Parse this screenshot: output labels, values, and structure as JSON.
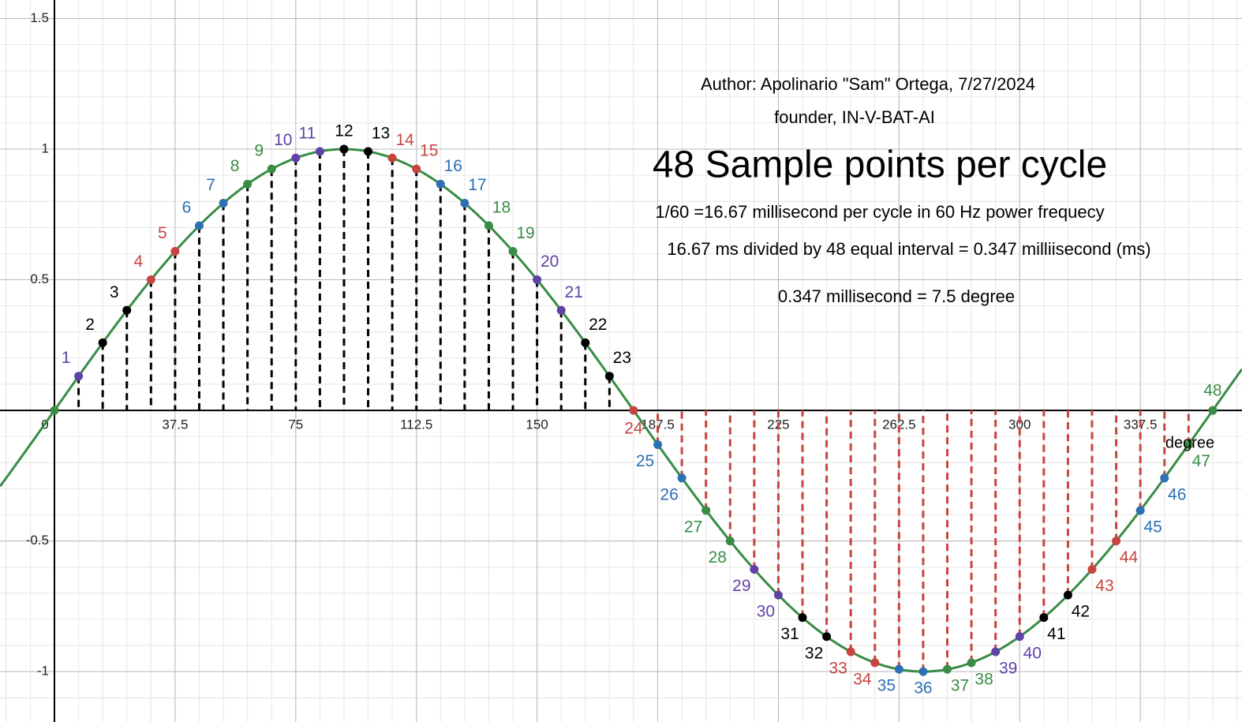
{
  "chart_data": {
    "type": "stem",
    "title": "48 Sample points per cycle",
    "annotations": [
      "Author: Apolinario \"Sam\" Ortega, 7/27/2024",
      "founder, IN-V-BAT-AI",
      "1/60 =16.67 millisecond per cycle in 60 Hz power frequecy",
      "16.67 ms divided by 48 equal interval = 0.347 milliisecond (ms)",
      "0.347 millisecond = 7.5 degree"
    ],
    "x_label": "degree",
    "x": [
      0,
      7.5,
      15,
      22.5,
      30,
      37.5,
      45,
      52.5,
      60,
      67.5,
      75,
      82.5,
      90,
      97.5,
      105,
      112.5,
      120,
      127.5,
      135,
      142.5,
      150,
      157.5,
      165,
      172.5,
      180,
      187.5,
      195,
      202.5,
      210,
      217.5,
      225,
      232.5,
      240,
      247.5,
      255,
      262.5,
      270,
      277.5,
      285,
      292.5,
      300,
      307.5,
      315,
      322.5,
      330,
      337.5,
      345,
      352.5,
      360
    ],
    "values": [
      0,
      0.131,
      0.259,
      0.383,
      0.5,
      0.609,
      0.707,
      0.793,
      0.866,
      0.924,
      0.966,
      0.991,
      1,
      0.991,
      0.966,
      0.924,
      0.866,
      0.793,
      0.707,
      0.609,
      0.5,
      0.383,
      0.259,
      0.131,
      0,
      -0.131,
      -0.259,
      -0.383,
      -0.5,
      -0.609,
      -0.707,
      -0.793,
      -0.866,
      -0.924,
      -0.966,
      -0.991,
      -1,
      -0.991,
      -0.966,
      -0.924,
      -0.866,
      -0.793,
      -0.707,
      -0.609,
      -0.5,
      -0.383,
      -0.259,
      -0.131,
      0
    ],
    "point_labels": [
      null,
      "1",
      "2",
      "3",
      "4",
      "5",
      "6",
      "7",
      "8",
      "9",
      "10",
      "11",
      "12",
      "13",
      "14",
      "15",
      "16",
      "17",
      "18",
      "19",
      "20",
      "21",
      "22",
      "23",
      "24",
      "25",
      "26",
      "27",
      "28",
      "29",
      "30",
      "31",
      "32",
      "33",
      "34",
      "35",
      "36",
      "37",
      "38",
      "39",
      "40",
      "41",
      "42",
      "43",
      "44",
      "45",
      "46",
      "47",
      "48"
    ],
    "colors": [
      "#388c46",
      "#6042a6",
      "#000000",
      "#000000",
      "#c74440",
      "#c74440",
      "#2d70b3",
      "#2d70b3",
      "#388c46",
      "#388c46",
      "#6042a6",
      "#6042a6",
      "#000000",
      "#000000",
      "#c74440",
      "#c74440",
      "#2d70b3",
      "#2d70b3",
      "#388c46",
      "#388c46",
      "#6042a6",
      "#6042a6",
      "#000000",
      "#000000",
      "#c74440",
      "#2d70b3",
      "#2d70b3",
      "#388c46",
      "#388c46",
      "#6042a6",
      "#6042a6",
      "#000000",
      "#000000",
      "#c74440",
      "#c74440",
      "#2d70b3",
      "#2d70b3",
      "#388c46",
      "#388c46",
      "#6042a6",
      "#6042a6",
      "#000000",
      "#000000",
      "#c74440",
      "#c74440",
      "#2d70b3",
      "#2d70b3",
      "#388c46",
      "#388c46"
    ],
    "stem_colors": {
      "above": "#000000",
      "below": "#c74440"
    },
    "curve_color": "#388c46",
    "xlim": [
      -16.92,
      369.1
    ],
    "ylim": [
      -1.193,
      1.571
    ],
    "xticks": [
      0,
      37.5,
      75,
      112.5,
      150,
      187.5,
      225,
      262.5,
      300,
      337.5
    ],
    "yticks": [
      -1,
      -0.5,
      0.5,
      1,
      1.5
    ],
    "minor_step_x": 7.5,
    "minor_step_y": 0.1,
    "grid": true
  }
}
